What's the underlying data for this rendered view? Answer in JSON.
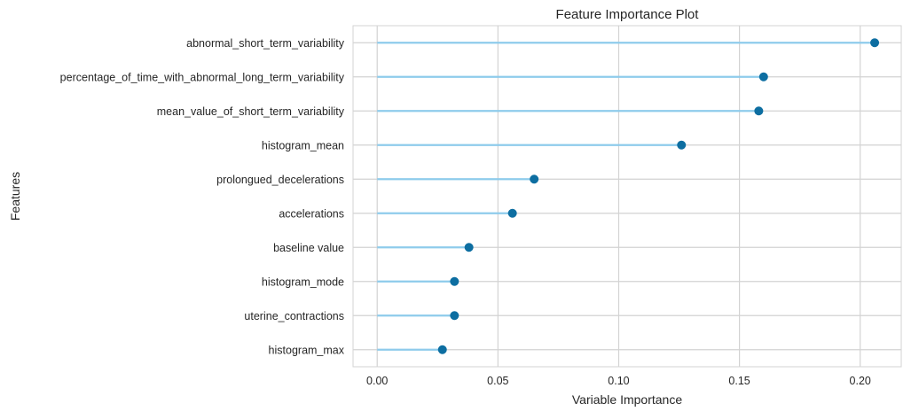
{
  "chart_data": {
    "type": "lollipop",
    "title": "Feature Importance Plot",
    "xlabel": "Variable Importance",
    "ylabel": "Features",
    "xlim": [
      -0.01,
      0.217
    ],
    "xticks": [
      0.0,
      0.05,
      0.1,
      0.15,
      0.2
    ],
    "xtick_labels": [
      "0.00",
      "0.05",
      "0.10",
      "0.15",
      "0.20"
    ],
    "grid": true,
    "categories": [
      "abnormal_short_term_variability",
      "percentage_of_time_with_abnormal_long_term_variability",
      "mean_value_of_short_term_variability",
      "histogram_mean",
      "prolongued_decelerations",
      "accelerations",
      "baseline value",
      "histogram_mode",
      "uterine_contractions",
      "histogram_max"
    ],
    "values": [
      0.206,
      0.16,
      0.158,
      0.126,
      0.065,
      0.056,
      0.038,
      0.032,
      0.032,
      0.027
    ],
    "colors": {
      "stem": "#8ecbeb",
      "marker": "#0d6ea1",
      "grid": "#d3d3d3",
      "frame": "#d3d3d3"
    }
  }
}
